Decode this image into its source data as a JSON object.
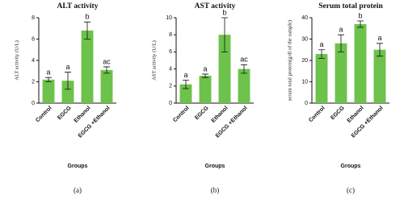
{
  "chart_data": [
    {
      "type": "bar",
      "title": "ALT activity",
      "y_label": "ALT activity (U/L)",
      "x_label": "Groups",
      "caption": "(a)",
      "categories": [
        "Control",
        "EGCG",
        "Ethanol",
        "EGCG +Ethanol"
      ],
      "values": [
        2.2,
        2.1,
        6.8,
        3.1
      ],
      "errors": [
        0.2,
        0.8,
        0.8,
        0.3
      ],
      "annotations": [
        "a",
        "a",
        "b",
        "ac"
      ],
      "color": "#6cc24a",
      "ylim": [
        0,
        8
      ],
      "yticks": [
        0,
        2,
        4,
        6,
        8
      ]
    },
    {
      "type": "bar",
      "title": "AST activity",
      "y_label": "AST activity (U/L)",
      "x_label": "Groups",
      "caption": "(b)",
      "categories": [
        "Control",
        "EGCG",
        "Ethanol",
        "EGCG +Ethanol"
      ],
      "values": [
        2.2,
        3.2,
        8.0,
        4.0
      ],
      "errors": [
        0.5,
        0.2,
        2.0,
        0.5
      ],
      "annotations": [
        "a",
        "a",
        "b",
        "ac"
      ],
      "color": "#6cc24a",
      "ylim": [
        0,
        10
      ],
      "yticks": [
        0,
        2,
        4,
        6,
        8,
        10
      ]
    },
    {
      "type": "bar",
      "title": "Serum total protein",
      "y_label": "serum total protein(g/dl of the sample)",
      "x_label": "Groups",
      "caption": "(c)",
      "categories": [
        "Control",
        "EGCG",
        "Ethanol",
        "EGCG +Ethanol"
      ],
      "values": [
        23,
        28,
        37,
        25
      ],
      "errors": [
        2,
        4,
        1.5,
        3
      ],
      "annotations": [
        "a",
        "a",
        "b",
        "a"
      ],
      "color": "#6cc24a",
      "ylim": [
        0,
        40
      ],
      "yticks": [
        0,
        10,
        20,
        30,
        40
      ]
    }
  ]
}
